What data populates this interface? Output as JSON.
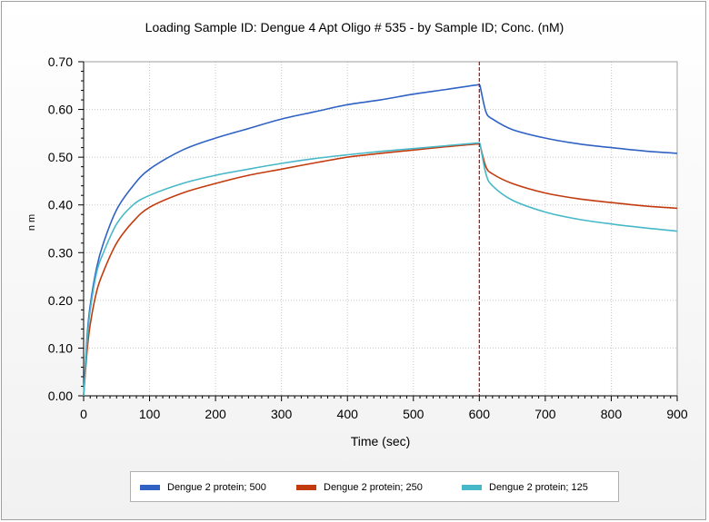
{
  "chart_data": {
    "type": "line",
    "title": "Loading Sample ID: Dengue 4 Apt Oligo # 535 - by Sample ID; Conc. (nM)",
    "xlabel": "Time (sec)",
    "ylabel": "n m",
    "xlim": [
      0,
      900
    ],
    "ylim": [
      0,
      0.7
    ],
    "xticks": [
      "0",
      "100",
      "200",
      "300",
      "400",
      "500",
      "600",
      "700",
      "800",
      "900"
    ],
    "yticks": [
      "0.00",
      "0.10",
      "0.20",
      "0.30",
      "0.40",
      "0.50",
      "0.60",
      "0.70"
    ],
    "grid": true,
    "legend_position": "bottom",
    "marker_line": {
      "x": 600,
      "color": "#cc0000"
    },
    "series": [
      {
        "name": "Dengue 2 protein; 500",
        "color": "#2f62c3",
        "x": [
          0,
          5,
          10,
          20,
          30,
          50,
          75,
          100,
          150,
          200,
          250,
          300,
          350,
          400,
          450,
          500,
          550,
          600,
          601,
          610,
          620,
          650,
          700,
          750,
          800,
          850,
          900
        ],
        "y": [
          0.0,
          0.12,
          0.19,
          0.27,
          0.32,
          0.39,
          0.44,
          0.475,
          0.515,
          0.54,
          0.56,
          0.58,
          0.595,
          0.61,
          0.62,
          0.632,
          0.642,
          0.652,
          0.65,
          0.595,
          0.58,
          0.558,
          0.54,
          0.528,
          0.52,
          0.513,
          0.508
        ]
      },
      {
        "name": "Dengue 2 protein; 250",
        "color": "#c23b0e",
        "x": [
          0,
          5,
          10,
          20,
          30,
          50,
          75,
          100,
          150,
          200,
          250,
          300,
          350,
          400,
          450,
          500,
          550,
          600,
          601,
          610,
          620,
          650,
          700,
          750,
          800,
          850,
          900
        ],
        "y": [
          0.0,
          0.09,
          0.15,
          0.22,
          0.26,
          0.32,
          0.365,
          0.395,
          0.425,
          0.445,
          0.462,
          0.475,
          0.488,
          0.5,
          0.508,
          0.515,
          0.522,
          0.528,
          0.526,
          0.48,
          0.465,
          0.445,
          0.425,
          0.413,
          0.405,
          0.398,
          0.393
        ]
      },
      {
        "name": "Dengue 2 protein; 125",
        "color": "#47b8c8",
        "x": [
          0,
          5,
          10,
          20,
          30,
          50,
          75,
          100,
          150,
          200,
          250,
          300,
          350,
          400,
          450,
          500,
          550,
          600,
          601,
          610,
          620,
          650,
          700,
          750,
          800,
          850,
          900
        ],
        "y": [
          0.0,
          0.11,
          0.18,
          0.26,
          0.3,
          0.36,
          0.4,
          0.42,
          0.445,
          0.462,
          0.475,
          0.487,
          0.497,
          0.505,
          0.512,
          0.518,
          0.524,
          0.53,
          0.528,
          0.465,
          0.44,
          0.41,
          0.385,
          0.37,
          0.36,
          0.352,
          0.345
        ]
      }
    ]
  }
}
